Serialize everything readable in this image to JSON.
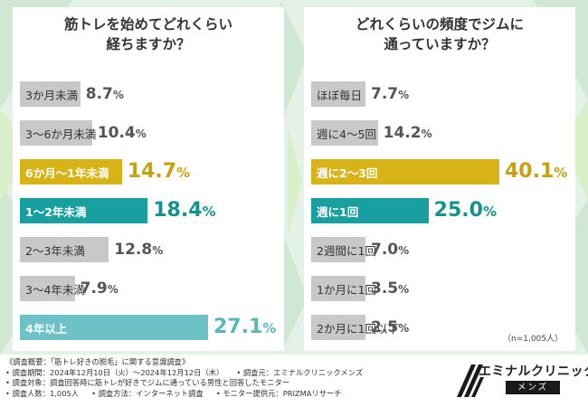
{
  "colors": {
    "gray_bar": "#c8c8c8",
    "gold_bar": "#d8b318",
    "teal_bar": "#18a0a0",
    "light_teal_bar": "#6cc2c6",
    "value_gray": "#555555",
    "value_gold": "#c9a010",
    "value_teal": "#12938f",
    "value_light_teal": "#5bb6ba"
  },
  "chart_data": [
    {
      "type": "bar",
      "orientation": "horizontal",
      "title_lines": [
        "筋トレを始めてどれくらい",
        "経ちますか？"
      ],
      "categories": [
        "3か月未満",
        "3～6か月未満",
        "6か月～1年未満",
        "1～2年未満",
        "2～3年未満",
        "3～4年未満",
        "4年以上"
      ],
      "values": [
        8.7,
        10.4,
        14.7,
        18.4,
        12.8,
        7.9,
        27.1
      ],
      "unit": "%",
      "styles": [
        "gray",
        "gray",
        "gold",
        "teal",
        "gray",
        "gray",
        "light_teal"
      ],
      "xlim": [
        0,
        27.1
      ]
    },
    {
      "type": "bar",
      "orientation": "horizontal",
      "title_lines": [
        "どれくらいの頻度でジムに",
        "通っていますか？"
      ],
      "categories": [
        "ほぼ毎日",
        "週に4～5回",
        "週に2～3回",
        "週に1回",
        "2週間に1回",
        "1か月に1回",
        "2か月に1回以下"
      ],
      "values": [
        7.7,
        14.2,
        40.1,
        25.0,
        7.0,
        3.5,
        2.5
      ],
      "unit": "%",
      "styles": [
        "gray",
        "gray",
        "gold",
        "teal",
        "gray",
        "gray",
        "gray"
      ],
      "xlim": [
        0,
        40.1
      ],
      "note": "（n=1,005人）"
    }
  ],
  "footer": {
    "lines": [
      [
        "《調査概要：「筋トレ好きの脱毛」に関する意識調査》"
      ],
      [
        "• 調査期間：2024年12月10日（火）～2024年12月12日（木）",
        "• 調査元：エミナルクリニックメンズ"
      ],
      [
        "• 調査対象：調査回答時に筋トレが好きでジムに通っている男性と回答したモニター"
      ],
      [
        "• 調査人数：1,005人",
        "• 調査方法：インターネット調査",
        "• モニター提供元：PRIZMAリサーチ"
      ]
    ]
  },
  "logo": {
    "name": "エミナルクリニック",
    "sub": "メンズ"
  }
}
